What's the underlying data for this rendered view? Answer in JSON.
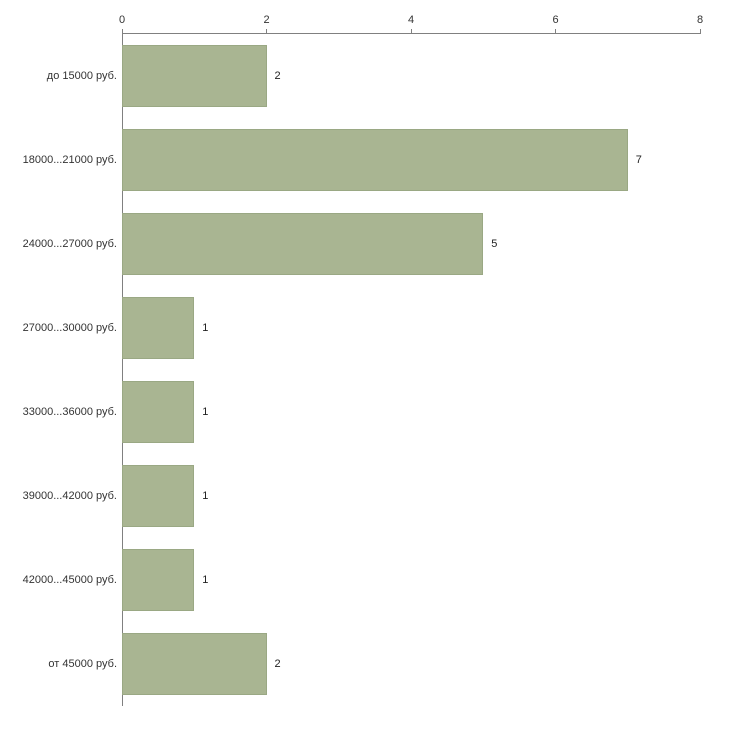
{
  "chart_data": {
    "type": "bar",
    "orientation": "horizontal",
    "title": "",
    "xlabel": "",
    "ylabel": "",
    "categories": [
      "до 15000 руб.",
      "18000...21000 руб.",
      "24000...27000 руб.",
      "27000...30000 руб.",
      "33000...36000 руб.",
      "39000...42000 руб.",
      "42000...45000 руб.",
      "от 45000 руб."
    ],
    "values": [
      2,
      7,
      5,
      1,
      1,
      1,
      1,
      2
    ],
    "x_ticks": [
      0,
      2,
      4,
      6,
      8
    ],
    "xlim": [
      0,
      8
    ],
    "grid": false,
    "legend_position": "none",
    "axis_position": "top-left",
    "colors": {
      "bar_fill": "#a9b592",
      "bar_border": "#9aa884",
      "axis_line": "#808080",
      "tick_text": "#333333",
      "value_text": "#222222",
      "background": "#ffffff"
    }
  }
}
